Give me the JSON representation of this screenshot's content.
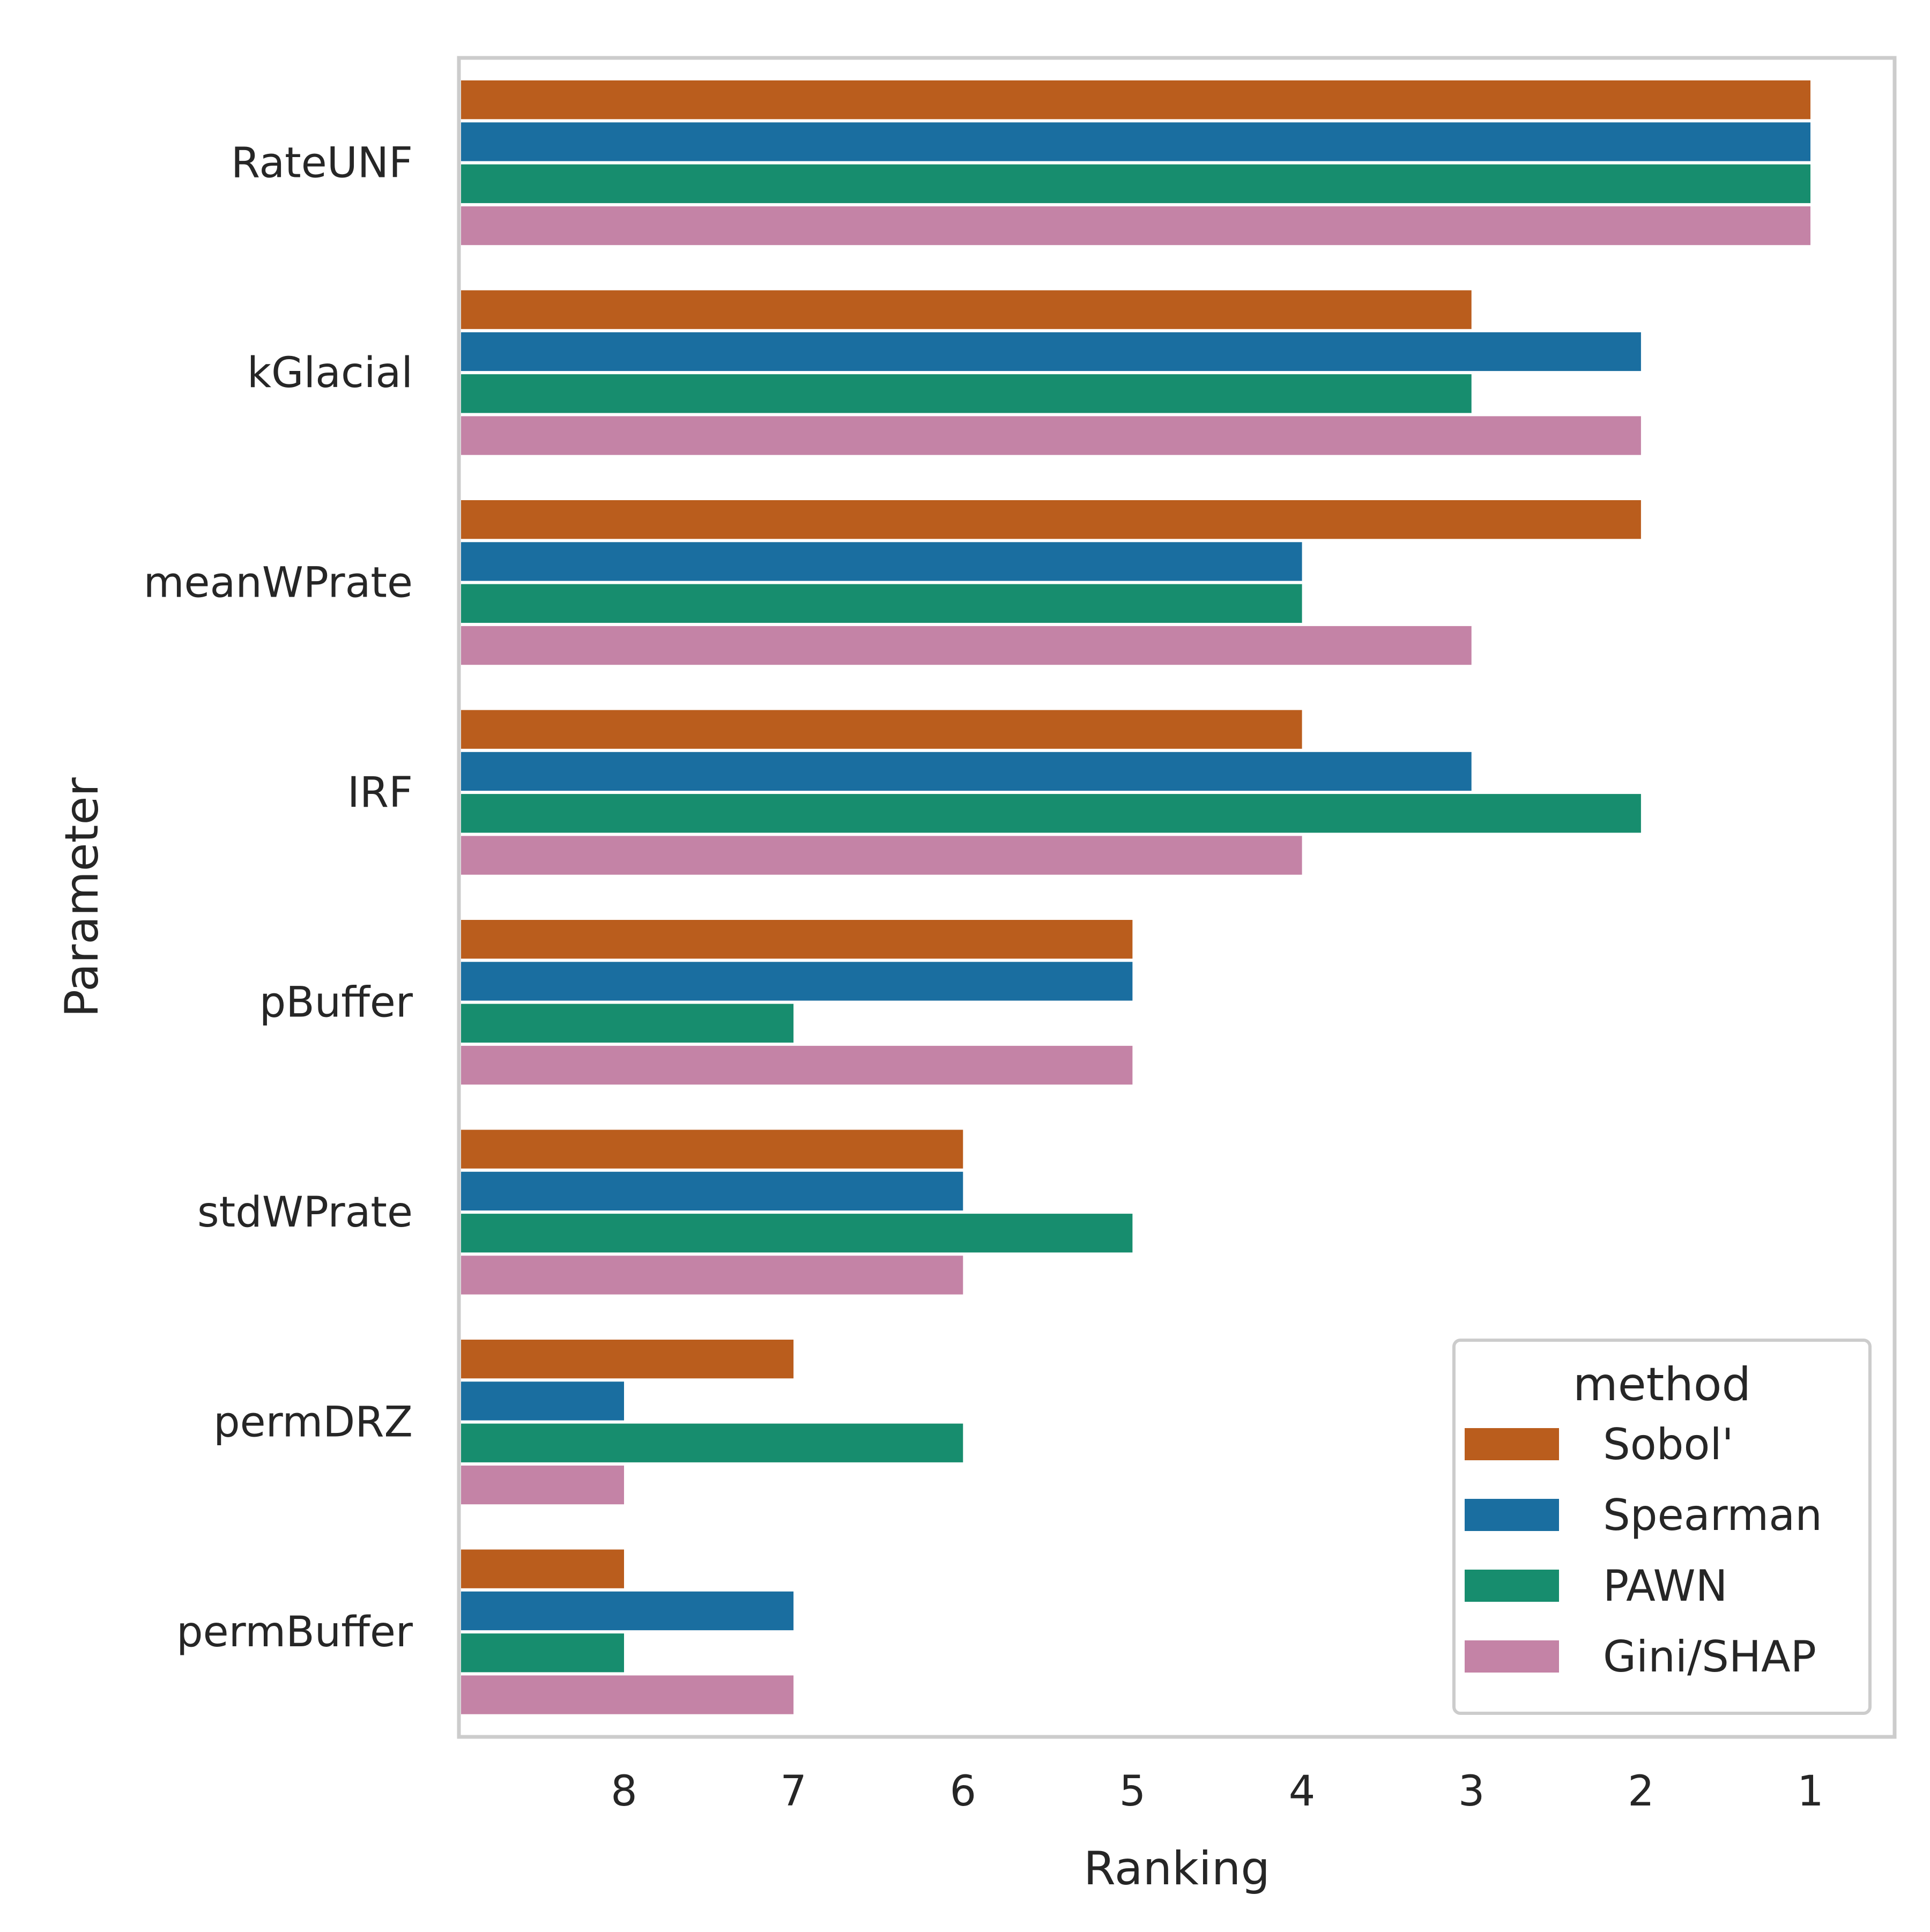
{
  "chart_data": {
    "type": "bar",
    "orientation": "horizontal",
    "xlabel": "Ranking",
    "ylabel": "Parameter",
    "x_reversed": true,
    "xlim": [
      9,
      1
    ],
    "x_ticks": [
      8,
      7,
      6,
      5,
      4,
      3,
      2,
      1
    ],
    "grid": false,
    "categories": [
      "RateUNF",
      "kGlacial",
      "meanWPrate",
      "IRF",
      "pBuffer",
      "stdWPrate",
      "permDRZ",
      "permBuffer"
    ],
    "legend": {
      "title": "method",
      "placement": "lower-right"
    },
    "series": [
      {
        "name": "Sobol'",
        "color": "#ba5d1d",
        "values": [
          1,
          3,
          2,
          4,
          5,
          6,
          7,
          8
        ]
      },
      {
        "name": "Spearman",
        "color": "#1a6ea0",
        "values": [
          1,
          2,
          4,
          3,
          5,
          6,
          8,
          7
        ]
      },
      {
        "name": "PAWN",
        "color": "#178d6e",
        "values": [
          1,
          3,
          4,
          2,
          7,
          5,
          6,
          8
        ]
      },
      {
        "name": "Gini/SHAP",
        "color": "#c483a6",
        "values": [
          1,
          2,
          3,
          4,
          5,
          6,
          8,
          7
        ]
      }
    ]
  }
}
